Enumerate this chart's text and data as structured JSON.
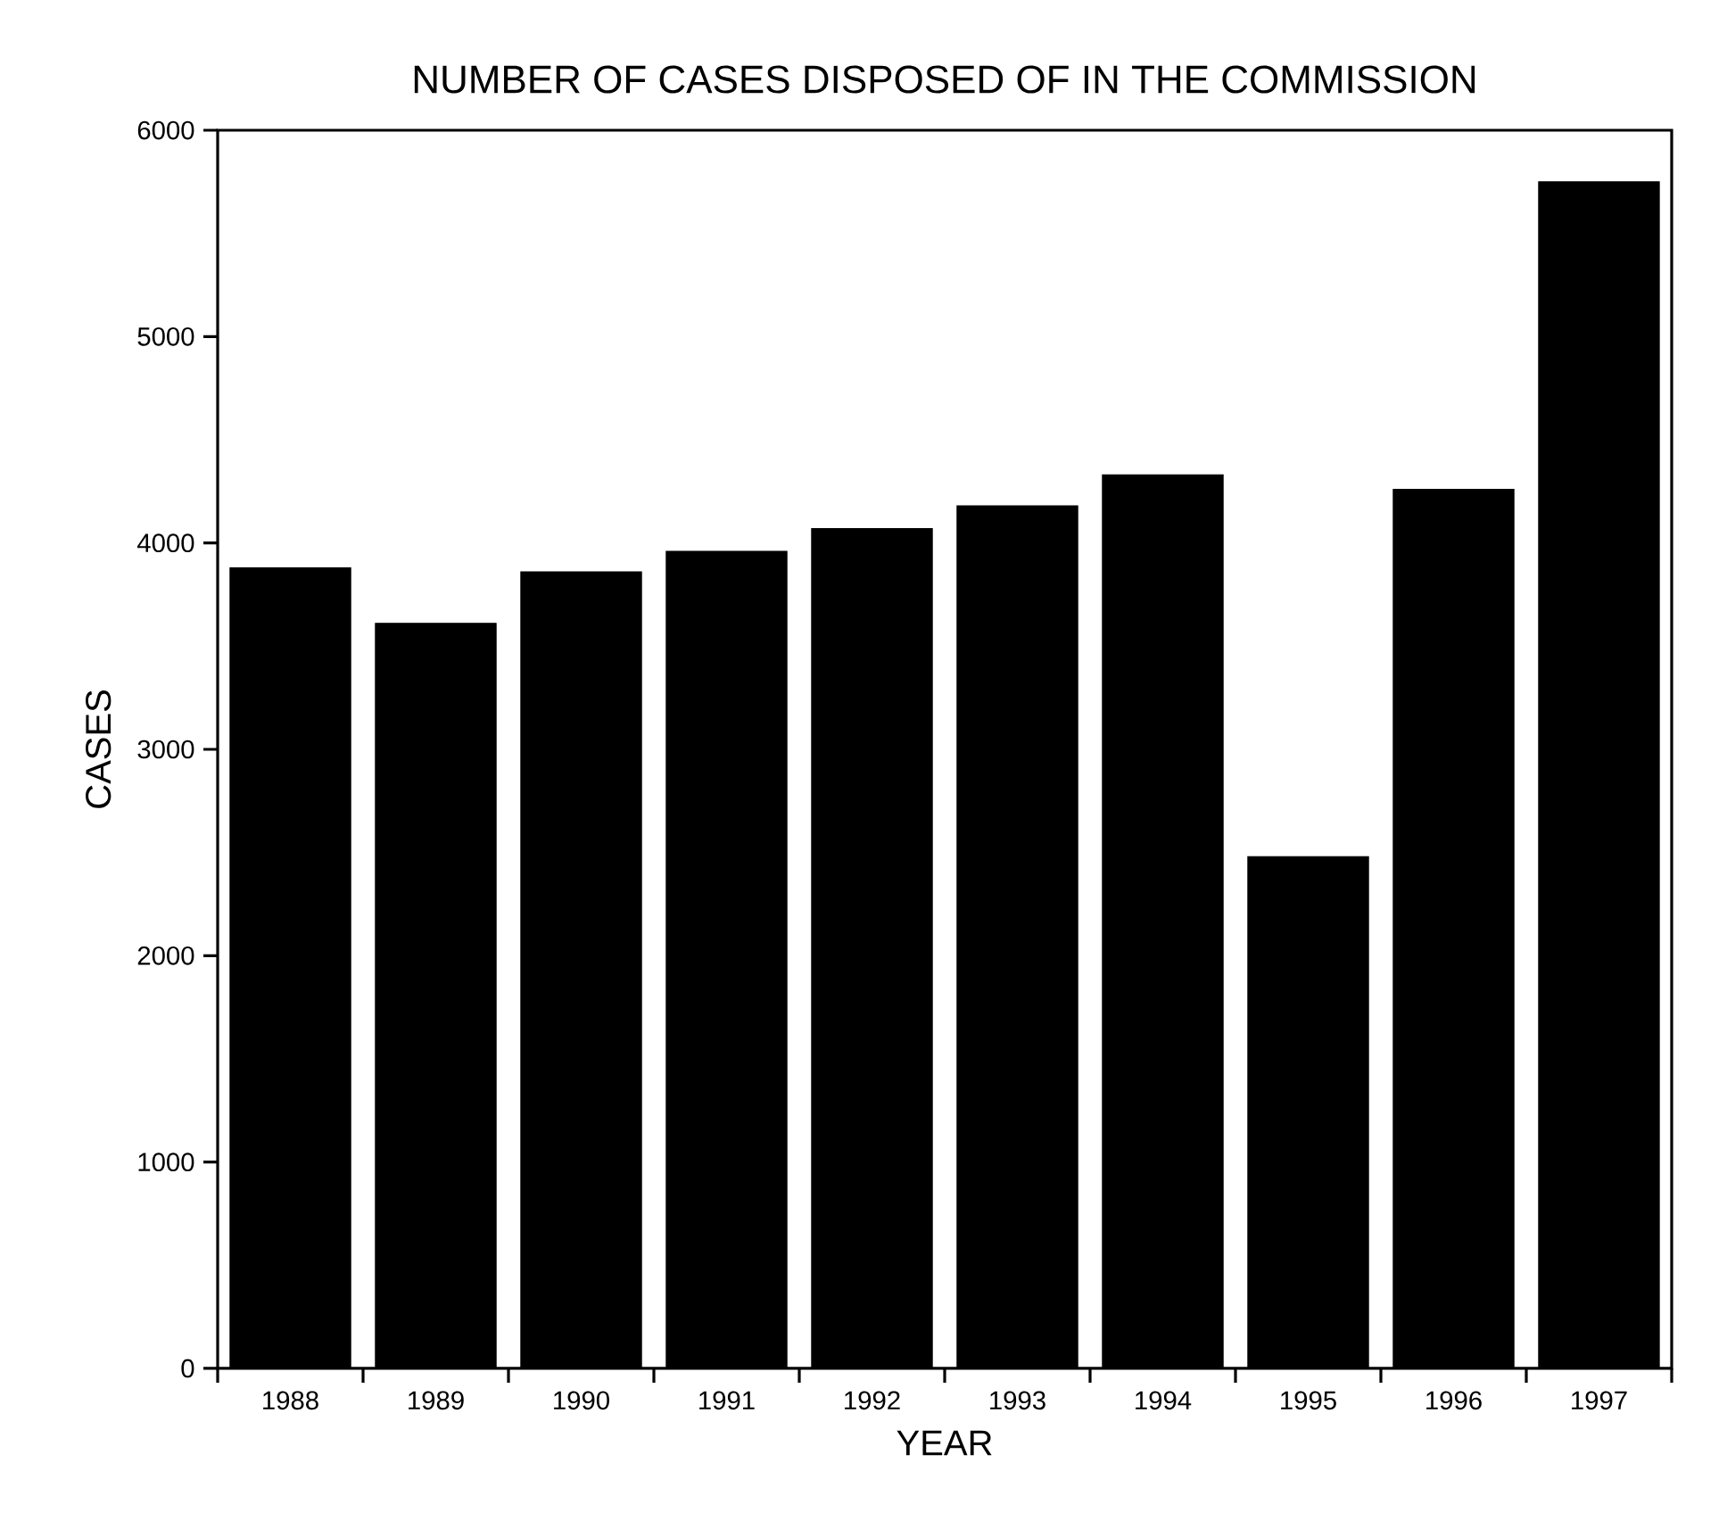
{
  "chart_data": {
    "type": "bar",
    "title": "NUMBER OF CASES DISPOSED OF IN THE COMMISSION",
    "xlabel": "YEAR",
    "ylabel": "CASES",
    "categories": [
      "1988",
      "1989",
      "1990",
      "1991",
      "1992",
      "1993",
      "1994",
      "1995",
      "1996",
      "1997"
    ],
    "values": [
      3880,
      3610,
      3860,
      3960,
      4070,
      4180,
      4330,
      2480,
      4260,
      5750
    ],
    "color": "#000000",
    "ylim": [
      0,
      6000
    ],
    "yticks": [
      0,
      1000,
      2000,
      3000,
      4000,
      5000,
      6000
    ],
    "grid": false
  }
}
